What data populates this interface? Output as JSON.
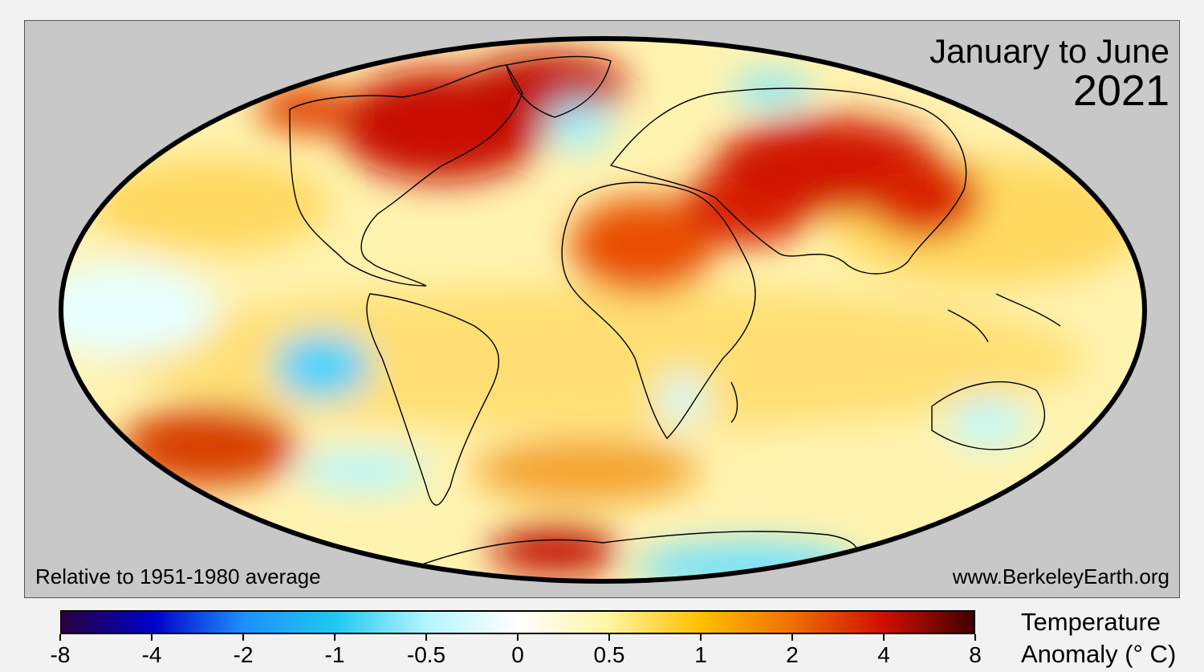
{
  "map": {
    "title_line1": "January to June",
    "title_line2": "2021",
    "note_left": "Relative to 1951-1980 average",
    "note_right": "www.BerkeleyEarth.org",
    "projection": "mollweide",
    "ocean_background_color": "#c8c8c8",
    "outline_color": "#000000"
  },
  "legend": {
    "title_line1": "Temperature",
    "title_line2": "Anomaly (° C)",
    "ticks": [
      "-8",
      "-4",
      "-2",
      "-1",
      "-0.5",
      "0",
      "0.5",
      "1",
      "2",
      "4",
      "8"
    ],
    "colors": [
      "#2a0040",
      "#0000c8",
      "#1e90ff",
      "#20c8f0",
      "#b4f5ff",
      "#ffffff",
      "#fff5a0",
      "#ffc000",
      "#f07000",
      "#d01000",
      "#400000"
    ]
  }
}
